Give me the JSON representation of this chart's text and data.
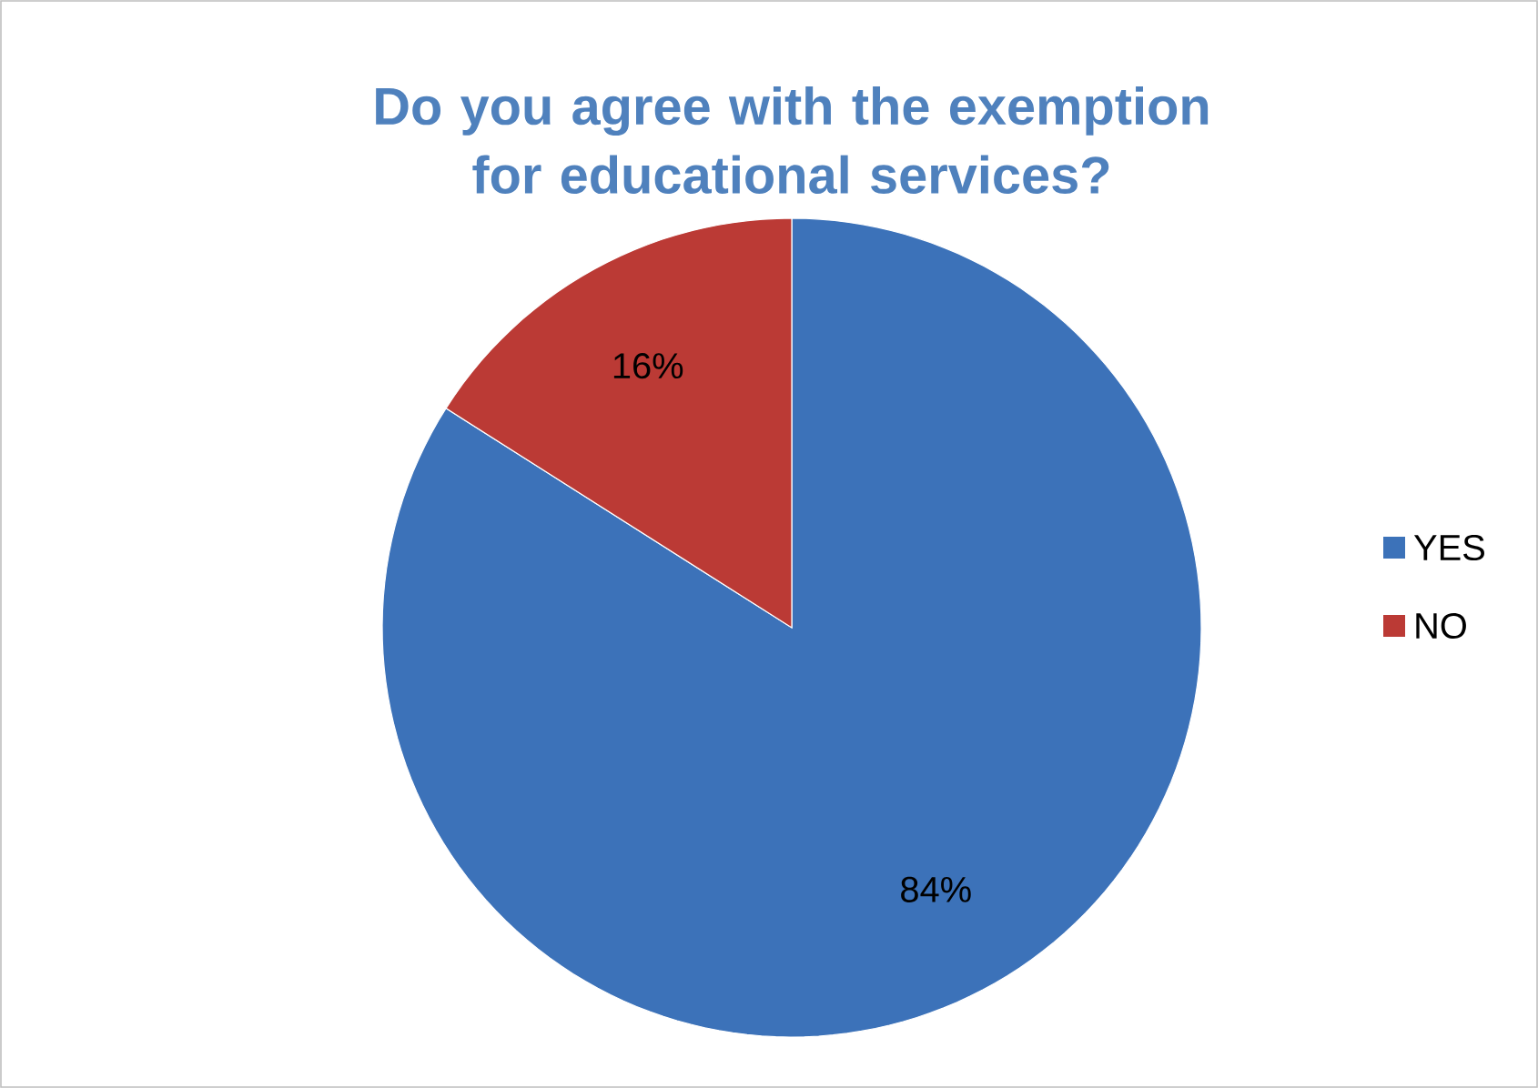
{
  "chart_data": {
    "type": "pie",
    "title": "Do you agree with the exemption for educational services?",
    "categories": [
      "YES",
      "NO"
    ],
    "values": [
      84,
      16
    ],
    "colors": [
      "#3c72b9",
      "#bb3a35"
    ],
    "value_labels": [
      "84%",
      "16%"
    ],
    "legend": "right"
  }
}
